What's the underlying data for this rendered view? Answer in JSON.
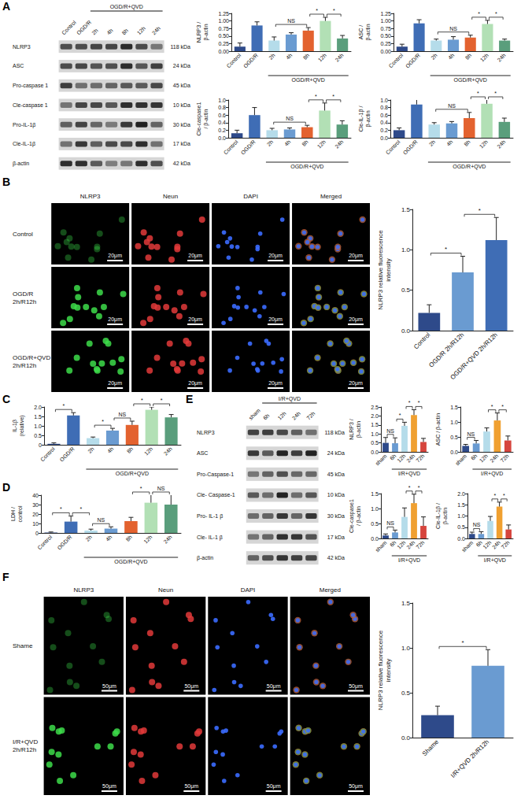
{
  "panels": [
    "A",
    "B",
    "C",
    "D",
    "E",
    "F"
  ],
  "blots": [
    {
      "columns": [
        "Control",
        "OGD/R",
        "2h",
        "4h",
        "8h",
        "12h",
        "24h"
      ],
      "group_label": {
        "text": "OGD/R+QVD",
        "from": "2h",
        "to": "24h"
      },
      "rows": [
        {
          "label": "NLRP3",
          "size": "118 kDa"
        },
        {
          "label": "ASC",
          "size": "24 kDa"
        },
        {
          "label": "Pro-caspase 1",
          "size": "45 kDa"
        },
        {
          "label": "Cle-caspase 1",
          "size": "10 kDa"
        },
        {
          "label": "Pro-IL-1β",
          "size": "30 kDa"
        },
        {
          "label": "Cle-IL-1β",
          "size": "17 kDa"
        },
        {
          "label": "β-actin",
          "size": "42 kDa"
        }
      ]
    },
    {
      "columns": [
        "sham",
        "6h",
        "12h",
        "24h",
        "72h"
      ],
      "group_label": {
        "text": "I/R+QVD",
        "from": "6h",
        "to": "72h"
      },
      "rows": [
        {
          "label": "NLRP3",
          "size": "118 kDa"
        },
        {
          "label": "ASC",
          "size": "24 kDa"
        },
        {
          "label": "Pro-Caspase-1",
          "size": "45 kDa"
        },
        {
          "label": "Cle- Caspase-1",
          "size": "10 kDa"
        },
        {
          "label": "Pro- IL-1 β",
          "size": "30 kDa"
        },
        {
          "label": "Cle- IL-1 β",
          "size": "17 kDa"
        },
        {
          "label": "β-actin",
          "size": "42 kDa"
        }
      ]
    }
  ],
  "images": [
    {
      "columns": [
        "NLRP3",
        "Neun",
        "DAPI",
        "Merged"
      ],
      "rows": [
        "Control",
        "OGD/R 2h/R12h",
        "OGD/R+QVD 2h/R12h"
      ],
      "scale_bar": "20μm"
    },
    {
      "columns": [
        "NLRP3",
        "Neun",
        "DAPI",
        "Merged"
      ],
      "rows": [
        "Shame",
        "I/R+QVD 2h/R12h"
      ],
      "scale_bar": "50μm"
    }
  ],
  "chart_data": [
    {
      "type": "bar",
      "ylabel": "NLRP3 / β-actin",
      "categories": [
        "Control",
        "OGD/R",
        "2h",
        "4h",
        "8h",
        "12h",
        "24h"
      ],
      "values": [
        0.15,
        0.85,
        0.35,
        0.55,
        0.68,
        1.0,
        0.42
      ],
      "errors": [
        0.12,
        0.12,
        0.12,
        0.06,
        0.1,
        0.12,
        0.1
      ],
      "colors": [
        "#2e4a8a",
        "#3f6db5",
        "#b5dcea",
        "#6a9bd1",
        "#e3622f",
        "#b2e0b5",
        "#5a9e7c"
      ],
      "ylim": [
        0,
        1.25
      ],
      "yticks": [
        {
          "value": 0,
          "label": "0.00"
        },
        0.25,
        {
          "value": 0.5,
          "label": "0.50"
        },
        0.75,
        {
          "value": 1,
          "label": "1.00"
        },
        1.25
      ],
      "grid": false,
      "group_label": {
        "text": "OGD/R+QVD",
        "from": "2h",
        "to": "24h"
      },
      "annotations": [
        {
          "text": "NS",
          "from": "2h",
          "to": "8h"
        },
        {
          "text": "*",
          "from": "8h",
          "to": "12h"
        },
        {
          "text": "*",
          "from": "12h",
          "to": "24h"
        }
      ]
    },
    {
      "type": "bar",
      "ylabel": "ASC / β-actin",
      "categories": [
        "Control",
        "OGD/R",
        "2h",
        "4h",
        "8h",
        "12h",
        "24h"
      ],
      "values": [
        0.15,
        0.92,
        0.35,
        0.38,
        0.45,
        0.9,
        0.35
      ],
      "errors": [
        0.08,
        0.12,
        0.05,
        0.1,
        0.08,
        0.12,
        0.05
      ],
      "colors": [
        "#2e4a8a",
        "#3f6db5",
        "#b5dcea",
        "#6a9bd1",
        "#e3622f",
        "#b2e0b5",
        "#5a9e7c"
      ],
      "ylim": [
        0,
        1.25
      ],
      "yticks": [
        {
          "value": 0,
          "label": "0.00"
        },
        0.25,
        {
          "value": 0.5,
          "label": "0.50"
        },
        0.75,
        {
          "value": 1,
          "label": "1.00"
        },
        1.25
      ],
      "grid": false,
      "group_label": {
        "text": "OGD/R+QVD",
        "from": "2h",
        "to": "24h"
      },
      "annotations": [
        {
          "text": "NS",
          "from": "2h",
          "to": "8h"
        },
        {
          "text": "*",
          "from": "8h",
          "to": "12h"
        },
        {
          "text": "*",
          "from": "12h",
          "to": "24h"
        }
      ]
    },
    {
      "type": "bar",
      "ylabel": "Cle-caspase1 / β-actin",
      "categories": [
        "Control",
        "OGD/R",
        "2h",
        "4h",
        "8h",
        "12h",
        "24h"
      ],
      "values": [
        0.12,
        0.6,
        0.2,
        0.22,
        0.28,
        0.72,
        0.35
      ],
      "errors": [
        0.08,
        0.2,
        0.05,
        0.04,
        0.05,
        0.2,
        0.1
      ],
      "colors": [
        "#2e4a8a",
        "#3f6db5",
        "#b5dcea",
        "#6a9bd1",
        "#e3622f",
        "#b2e0b5",
        "#5a9e7c"
      ],
      "ylim": [
        0,
        1
      ],
      "yticks": [
        {
          "value": 0,
          "label": "0.0"
        },
        0.2,
        0.4,
        0.6,
        0.8,
        {
          "value": 1,
          "label": "1.0"
        }
      ],
      "grid": false,
      "group_label": {
        "text": "OGD/R+QVD",
        "from": "2h",
        "to": "24h"
      },
      "annotations": [
        {
          "text": "NS",
          "from": "2h",
          "to": "8h"
        },
        {
          "text": "*",
          "from": "8h",
          "to": "12h"
        },
        {
          "text": "*",
          "from": "12h",
          "to": "24h"
        }
      ]
    },
    {
      "type": "bar",
      "ylabel": "Cle-IL-1β / β-actin",
      "categories": [
        "Control",
        "OGD/R",
        "2h",
        "4h",
        "8h",
        "12h",
        "24h"
      ],
      "values": [
        0.2,
        0.88,
        0.35,
        0.38,
        0.52,
        0.9,
        0.42
      ],
      "errors": [
        0.06,
        0.2,
        0.05,
        0.05,
        0.15,
        0.2,
        0.1
      ],
      "colors": [
        "#2e4a8a",
        "#3f6db5",
        "#b5dcea",
        "#6a9bd1",
        "#e3622f",
        "#b2e0b5",
        "#5a9e7c"
      ],
      "ylim": [
        0,
        1
      ],
      "yticks": [
        {
          "value": 0,
          "label": "0.0"
        },
        0.2,
        0.4,
        0.6,
        0.8,
        {
          "value": 1,
          "label": "1.0"
        }
      ],
      "grid": false,
      "group_label": {
        "text": "OGD/R+QVD",
        "from": "2h",
        "to": "24h"
      },
      "annotations": [
        {
          "text": "NS",
          "from": "2h",
          "to": "8h"
        },
        {
          "text": "*",
          "from": "8h",
          "to": "12h"
        },
        {
          "text": "*",
          "from": "12h",
          "to": "24h"
        }
      ]
    },
    {
      "type": "bar",
      "ylabel": "NLRP3 relative fluorescence intensity",
      "categories": [
        "Control",
        "OGD/R 2h/R12h",
        "OGD/R+QVD 2h/R12h"
      ],
      "values": [
        0.22,
        0.72,
        1.12
      ],
      "errors": [
        0.1,
        0.2,
        0.28
      ],
      "colors": [
        "#2e4a8a",
        "#6a9bd1",
        "#3f6db5"
      ],
      "ylim": [
        0,
        1.5
      ],
      "yticks": [
        {
          "value": 0,
          "label": "0.0"
        },
        0.5,
        {
          "value": 1,
          "label": "1.0"
        },
        1.5
      ],
      "grid": false,
      "annotations": [
        {
          "text": "*",
          "from": "Control",
          "to": "OGD/R 2h/R12h"
        },
        {
          "text": "*",
          "from": "OGD/R 2h/R12h",
          "to": "OGD/R+QVD 2h/R12h"
        }
      ]
    },
    {
      "type": "bar",
      "ylabel": "IL-1β (relative)",
      "categories": [
        "Control",
        "OGD/R",
        "2h",
        "4h",
        "8h",
        "12h",
        "24h"
      ],
      "values": [
        0.05,
        1.55,
        0.35,
        0.75,
        1.05,
        1.85,
        1.45
      ],
      "errors": [
        0.05,
        0.15,
        0.06,
        0.12,
        0.2,
        0.15,
        0.15
      ],
      "colors": [
        "#2e4a8a",
        "#3f6db5",
        "#b5dcea",
        "#6a9bd1",
        "#e3622f",
        "#b2e0b5",
        "#5a9e7c"
      ],
      "ylim": [
        0,
        2
      ],
      "yticks": [
        0,
        0.5,
        {
          "value": 1,
          "label": "1.0"
        },
        1.5,
        {
          "value": 2,
          "label": "2.0"
        }
      ],
      "grid": false,
      "group_label": {
        "text": "OGD/R+QVD",
        "from": "2h",
        "to": "24h"
      },
      "annotations": [
        {
          "text": "*",
          "from": "Control",
          "to": "OGD/R"
        },
        {
          "text": "*",
          "from": "2h",
          "to": "4h"
        },
        {
          "text": "NS",
          "from": "4h",
          "to": "8h"
        },
        {
          "text": "*",
          "from": "8h",
          "to": "12h"
        },
        {
          "text": "*",
          "from": "12h",
          "to": "24h"
        }
      ]
    },
    {
      "type": "bar",
      "ylabel": "LDH / control",
      "categories": [
        "Control",
        "OGD/R",
        "2h",
        "4h",
        "8h",
        "12h",
        "24h"
      ],
      "values": [
        0.5,
        12,
        2.5,
        4.5,
        12.5,
        32,
        30
      ],
      "errors": [
        0.5,
        6,
        1.5,
        2,
        4,
        12,
        12
      ],
      "colors": [
        "#2e4a8a",
        "#3f6db5",
        "#b5dcea",
        "#6a9bd1",
        "#e3622f",
        "#b2e0b5",
        "#5a9e7c"
      ],
      "ylim": [
        0,
        40
      ],
      "yticks": [
        0,
        10,
        20,
        30,
        40
      ],
      "grid": false,
      "group_label": {
        "text": "OGD/R+QVD",
        "from": "2h",
        "to": "24h"
      },
      "annotations": [
        {
          "text": "*",
          "from": "Control",
          "to": "OGD/R"
        },
        {
          "text": "*",
          "from": "OGD/R",
          "to": "2h"
        },
        {
          "text": "NS",
          "from": "2h",
          "to": "4h"
        },
        {
          "text": "*",
          "from": "8h",
          "to": "12h"
        },
        {
          "text": "NS",
          "from": "12h",
          "to": "24h"
        }
      ]
    },
    {
      "type": "bar",
      "ylabel": "NLRP3 / β-actin",
      "categories": [
        "sham",
        "6h",
        "12h",
        "24h",
        "72h"
      ],
      "values": [
        0.5,
        0.48,
        1.45,
        2.05,
        0.55
      ],
      "errors": [
        0.3,
        0.3,
        0.2,
        0.3,
        0.2
      ],
      "colors": [
        "#2e4a8a",
        "#6a9bd1",
        "#b5dcea",
        "#f0a030",
        "#d6453d"
      ],
      "ylim": [
        0,
        2.5
      ],
      "yticks": [
        {
          "value": 0,
          "label": "0.0"
        },
        0.5,
        {
          "value": 1,
          "label": "1.0"
        },
        1.5,
        {
          "value": 2,
          "label": "2.0"
        },
        2.5
      ],
      "grid": false,
      "group_label": {
        "text": "I/R+QVD",
        "from": "6h",
        "to": "72h"
      },
      "annotations": [
        {
          "text": "NS",
          "from": "sham",
          "to": "6h"
        },
        {
          "text": "*",
          "from": "6h",
          "to": "12h"
        },
        {
          "text": "*",
          "from": "12h",
          "to": "24h"
        },
        {
          "text": "*",
          "from": "24h",
          "to": "72h"
        }
      ]
    },
    {
      "type": "bar",
      "ylabel": "ASC / β-actin",
      "categories": [
        "sham",
        "6h",
        "12h",
        "24h",
        "72h"
      ],
      "values": [
        0.2,
        0.28,
        0.68,
        1.05,
        0.38
      ],
      "errors": [
        0.05,
        0.1,
        0.12,
        0.25,
        0.15
      ],
      "colors": [
        "#2e4a8a",
        "#6a9bd1",
        "#b5dcea",
        "#f0a030",
        "#d6453d"
      ],
      "ylim": [
        0,
        1.5
      ],
      "yticks": [
        {
          "value": 0,
          "label": "0.0"
        },
        0.5,
        {
          "value": 1,
          "label": "1.0"
        },
        1.5
      ],
      "grid": false,
      "group_label": {
        "text": "I/R+QVD",
        "from": "6h",
        "to": "72h"
      },
      "annotations": [
        {
          "text": "NS",
          "from": "sham",
          "to": "6h"
        },
        {
          "text": "*",
          "from": "12h",
          "to": "24h"
        },
        {
          "text": "*",
          "from": "24h",
          "to": "72h"
        }
      ]
    },
    {
      "type": "bar",
      "ylabel": "Cle-caspase1 / β-actin",
      "categories": [
        "sham",
        "6h",
        "12h",
        "24h",
        "72h"
      ],
      "values": [
        0.1,
        0.2,
        0.72,
        1.18,
        0.42
      ],
      "errors": [
        0.05,
        0.08,
        0.3,
        0.3,
        0.3
      ],
      "colors": [
        "#2e4a8a",
        "#6a9bd1",
        "#b5dcea",
        "#f0a030",
        "#d6453d"
      ],
      "ylim": [
        0,
        1.5
      ],
      "yticks": [
        {
          "value": 0,
          "label": "0.0"
        },
        0.5,
        {
          "value": 1,
          "label": "1.0"
        },
        1.5
      ],
      "grid": false,
      "group_label": {
        "text": "I/R+QVD",
        "from": "6h",
        "to": "72h"
      },
      "annotations": [
        {
          "text": "NS",
          "from": "sham",
          "to": "6h"
        },
        {
          "text": "*",
          "from": "12h",
          "to": "24h"
        },
        {
          "text": "*",
          "from": "24h",
          "to": "72h"
        }
      ]
    },
    {
      "type": "bar",
      "ylabel": "Cle-IL-1β / β-actin",
      "categories": [
        "sham",
        "6h",
        "12h",
        "24h",
        "72h"
      ],
      "values": [
        0.2,
        0.2,
        0.78,
        1.42,
        0.4
      ],
      "errors": [
        0.08,
        0.1,
        0.2,
        0.2,
        0.2
      ],
      "colors": [
        "#2e4a8a",
        "#6a9bd1",
        "#b5dcea",
        "#f0a030",
        "#d6453d"
      ],
      "ylim": [
        0,
        2
      ],
      "yticks": [
        {
          "value": 0,
          "label": "0.0"
        },
        0.5,
        {
          "value": 1,
          "label": "1.0"
        },
        1.5,
        {
          "value": 2,
          "label": "2.0"
        }
      ],
      "grid": false,
      "group_label": {
        "text": "I/R+QVD",
        "from": "6h",
        "to": "72h"
      },
      "annotations": [
        {
          "text": "NS",
          "from": "sham",
          "to": "6h"
        },
        {
          "text": "*",
          "from": "12h",
          "to": "24h"
        },
        {
          "text": "*",
          "from": "24h",
          "to": "72h"
        }
      ]
    },
    {
      "type": "bar",
      "ylabel": "NLRP3 relative fluorescence intensity",
      "categories": [
        "Shame",
        "I/R+QVD 2h/R12h"
      ],
      "values": [
        0.25,
        0.8
      ],
      "errors": [
        0.1,
        0.18
      ],
      "colors": [
        "#2e4a8a",
        "#6a9bd1"
      ],
      "ylim": [
        0,
        1.5
      ],
      "yticks": [
        {
          "value": 0,
          "label": "0.0"
        },
        0.5,
        {
          "value": 1,
          "label": "1.0"
        },
        1.5
      ],
      "grid": false,
      "annotations": [
        {
          "text": "*",
          "from": "Shame",
          "to": "I/R+QVD 2h/R12h"
        }
      ]
    }
  ]
}
